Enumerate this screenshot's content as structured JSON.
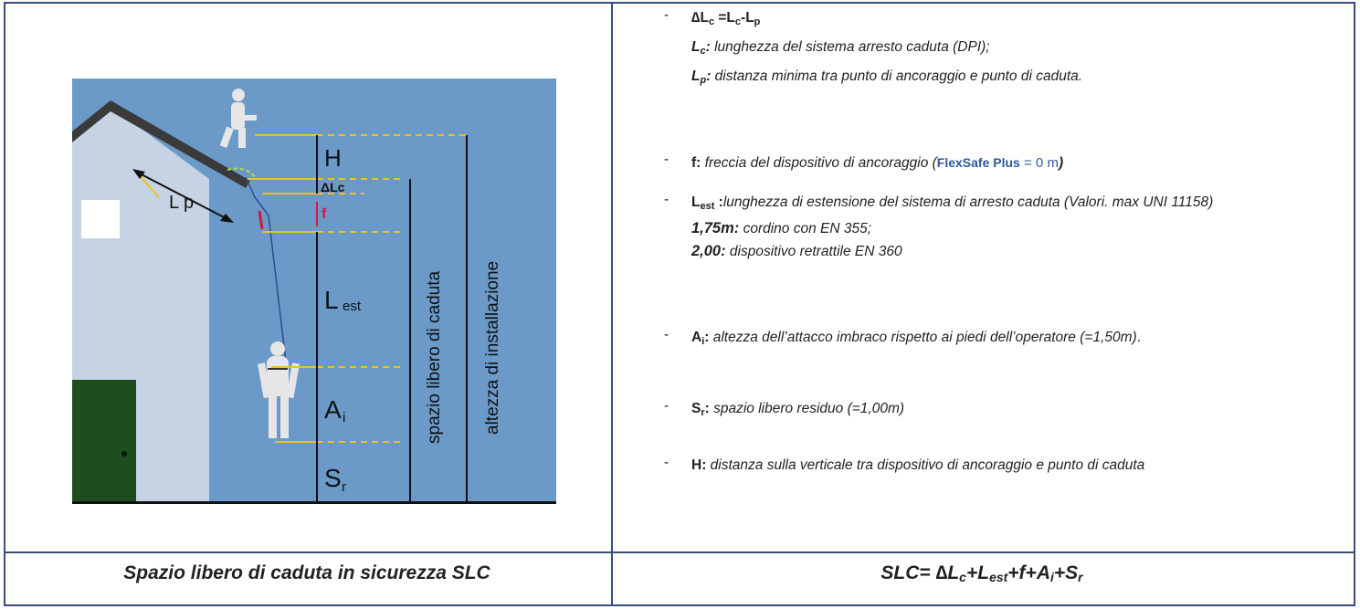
{
  "diagram": {
    "labels": {
      "h": "H",
      "delta_lc": "ΔLc",
      "f": "f",
      "l_est_main": "L",
      "l_est_sub": "est",
      "a_i_main": "A",
      "a_i_sub": "i",
      "s_r_main": "S",
      "s_r_sub": "r",
      "l_p": "L p",
      "spazio": "spazio libero di caduta",
      "altezza": "altezza di installazione"
    },
    "colors": {
      "wall": "#6b9ac8",
      "house": "#c6d3e4",
      "door": "#1e4d1e",
      "yellow": "#e8c41e"
    }
  },
  "legend": {
    "item1": {
      "delta_main": "∆L",
      "delta_sub": "c",
      "eq": " =L",
      "eq_sub": "c",
      "eq_minus": "-L",
      "eq_sub2": "p",
      "lc_main": "L",
      "lc_sub": "c",
      "lc_colon": ":",
      "lc_text": " lunghezza del sistema arresto caduta (DPI);",
      "lp_main": "L",
      "lp_sub": "p",
      "lp_colon": ":",
      "lp_text": " distanza minima tra punto di ancoraggio e punto di caduta."
    },
    "item2": {
      "key": "f:",
      "text": " freccia del dispositivo di ancoraggio (",
      "brand": "FlexSafe Plus",
      "value": " = 0 m",
      "close": ")"
    },
    "item3": {
      "key_main": "L",
      "key_sub": "est",
      "key_colon": " :",
      "text": "lunghezza di estensione del sistema di arresto caduta (Valori. max UNI 11158)",
      "v1": "1,75m:",
      "v1_text": " cordino con EN 355;",
      "v2": "2,00:",
      "v2_text": " dispositivo retrattile EN 360"
    },
    "item4": {
      "key_main": "A",
      "key_sub": "i",
      "key_colon": ":",
      "text": " altezza dell’attacco imbraco rispetto ai piedi dell’operatore (=1,50m)",
      "dot": "."
    },
    "item5": {
      "key_main": "S",
      "key_sub": "r",
      "key_colon": ":",
      "text": " spazio libero residuo (=1,00m)"
    },
    "item6": {
      "key": "H:",
      "text": " distanza sulla verticale tra dispositivo di ancoraggio e punto di caduta"
    },
    "dash": "-"
  },
  "captions": {
    "left": "Spazio libero di caduta in sicurezza SLC",
    "formula_a": "SLC= ",
    "formula_delta": "∆L",
    "formula_c": "c",
    "formula_plus1": "+L",
    "formula_est": "est",
    "formula_rest": "+f+A",
    "formula_i": "i",
    "formula_plus2": "+S",
    "formula_r": "r"
  }
}
